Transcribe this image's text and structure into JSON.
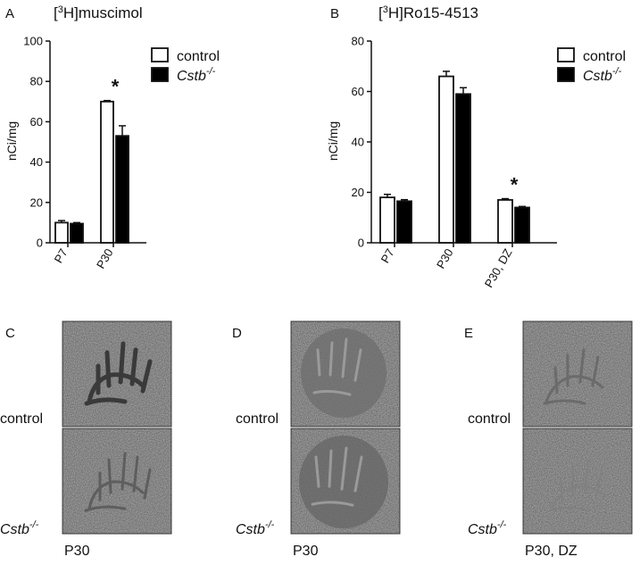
{
  "chart_data": [
    {
      "panel": "A",
      "type": "bar",
      "title": "[3H]muscimol",
      "title_parts": [
        "[",
        "3",
        "H]muscimol"
      ],
      "ylabel": "nCi/mg",
      "ylim": [
        0,
        100
      ],
      "yticks": [
        "0",
        "20",
        "40",
        "60",
        "80",
        "100"
      ],
      "categories": [
        "P7",
        "P30"
      ],
      "series": [
        {
          "name": "control",
          "values": [
            10,
            70
          ],
          "errors": [
            1,
            0.5
          ]
        },
        {
          "name": "Cstb-/-",
          "values": [
            9.5,
            53
          ],
          "errors": [
            0.5,
            5
          ]
        }
      ],
      "significance": [
        {
          "category": "P30",
          "label": "*"
        }
      ],
      "legend": "top-right"
    },
    {
      "panel": "B",
      "type": "bar",
      "title": "[3H]Ro15-4513",
      "title_parts": [
        "[",
        "3",
        "H]Ro15-4513"
      ],
      "ylabel": "nCi/mg",
      "ylim": [
        0,
        80
      ],
      "yticks": [
        "0",
        "20",
        "40",
        "60",
        "80"
      ],
      "categories": [
        "P7",
        "P30",
        "P30, DZ"
      ],
      "series": [
        {
          "name": "control",
          "values": [
            18,
            66,
            17
          ],
          "errors": [
            1.2,
            2,
            0.5
          ]
        },
        {
          "name": "Cstb-/-",
          "values": [
            16.5,
            59,
            14
          ],
          "errors": [
            0.6,
            2.5,
            0.4
          ]
        }
      ],
      "significance": [
        {
          "category": "P30, DZ",
          "label": "*"
        }
      ],
      "legend": "top-right"
    }
  ],
  "legend": {
    "control_label": "control",
    "ko_base": "Cstb",
    "ko_sup": "-/-"
  },
  "autoradiographs": {
    "panels": [
      {
        "letter": "C",
        "row_top": "control",
        "row_bottom_base": "Cstb",
        "row_bottom_sup": "-/-",
        "caption": "P30"
      },
      {
        "letter": "D",
        "row_top": "control",
        "row_bottom_base": "Cstb",
        "row_bottom_sup": "-/-",
        "caption": "P30"
      },
      {
        "letter": "E",
        "row_top": "control",
        "row_bottom_base": "Cstb",
        "row_bottom_sup": "-/-",
        "caption": "P30, DZ"
      }
    ]
  },
  "colors": {
    "control_fill": "#ffffff",
    "ko_fill": "#000000",
    "axis": "#111111",
    "image_bg": "#b3b3b3"
  }
}
